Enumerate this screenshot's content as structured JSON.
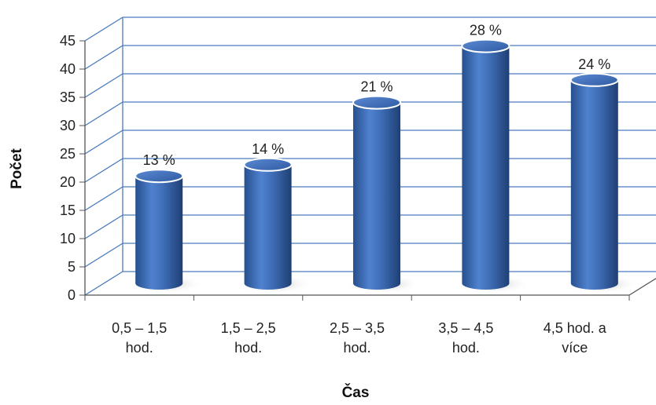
{
  "chart_data": {
    "type": "bar",
    "categories": [
      [
        "0,5 – 1,5",
        "hod."
      ],
      [
        "1,5 – 2,5",
        "hod."
      ],
      [
        "2,5 – 3,5",
        "hod."
      ],
      [
        "3,5 – 4,5",
        "hod."
      ],
      [
        "4,5 hod. a",
        "více"
      ]
    ],
    "values": [
      19,
      21,
      32,
      42,
      36
    ],
    "data_labels": [
      "13 %",
      "14 %",
      "21 %",
      "28 %",
      "24 %"
    ],
    "yticks": [
      "0",
      "5",
      "10",
      "15",
      "20",
      "25",
      "30",
      "35",
      "40",
      "45"
    ],
    "ylim": [
      0,
      45
    ],
    "xlabel": "Čas",
    "ylabel": "Počet",
    "grid": true,
    "legend": "none",
    "bar_color": "#3E6DB5"
  }
}
